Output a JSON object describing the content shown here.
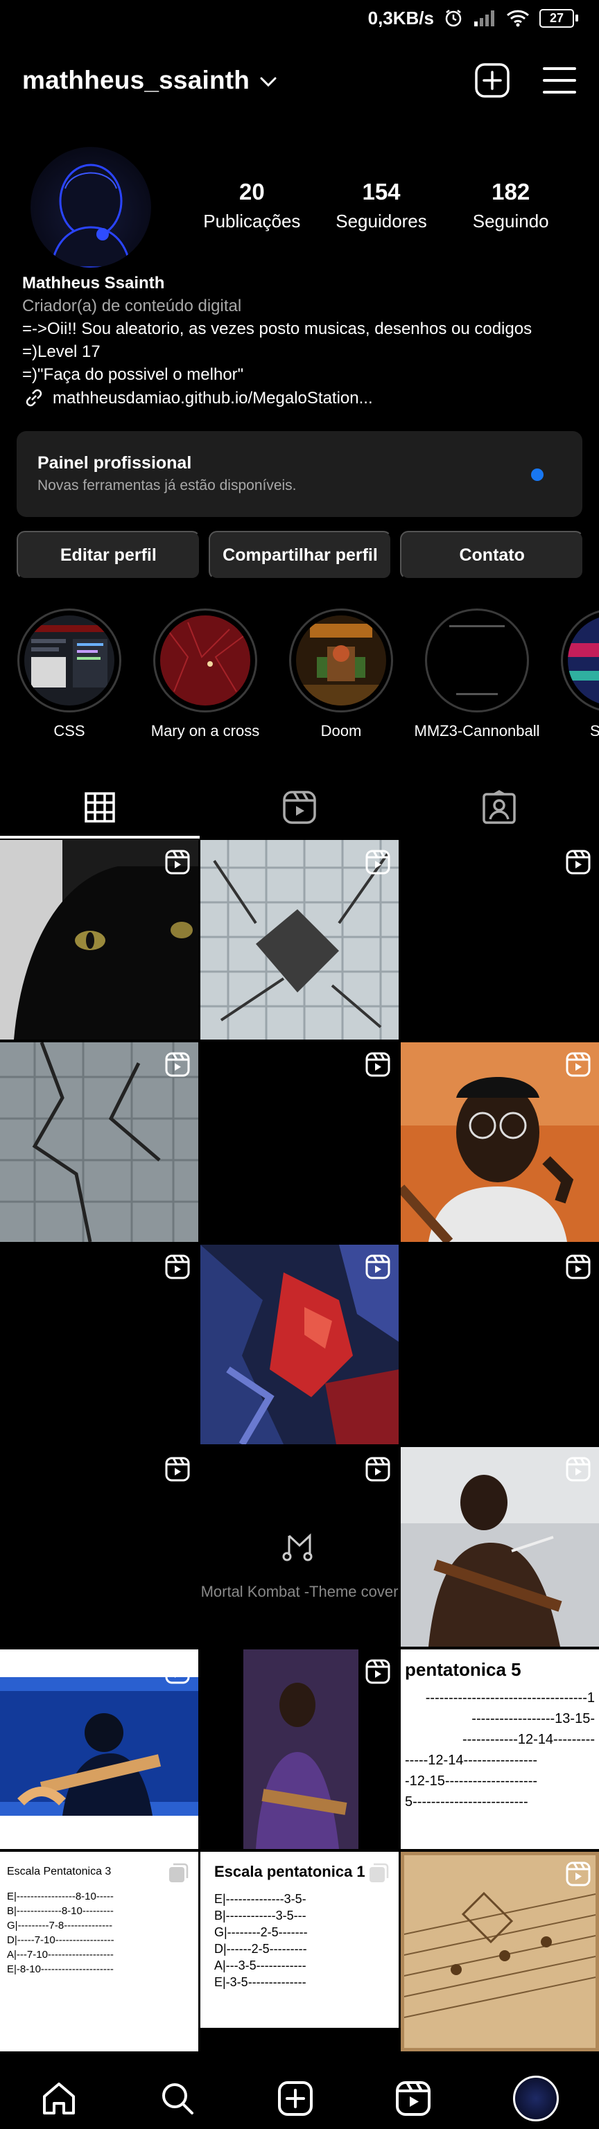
{
  "status": {
    "speed": "0,3KB/s",
    "battery": "27"
  },
  "header": {
    "username": "mathheus_ssainth"
  },
  "stats": [
    {
      "value": "20",
      "label": "Publicações"
    },
    {
      "value": "154",
      "label": "Seguidores"
    },
    {
      "value": "182",
      "label": "Seguindo"
    }
  ],
  "bio": {
    "name": "Mathheus Ssainth",
    "category": "Criador(a) de conteúdo digital",
    "lines": [
      "=->Oii!! Sou aleatorio, as vezes posto musicas, desenhos ou codigos",
      "=)Level 17",
      "=)\"Faça do possivel o melhor\""
    ],
    "link": "mathheusdamiao.github.io/MegaloStation..."
  },
  "panel": {
    "title": "Painel profissional",
    "subtitle": "Novas ferramentas já estão disponíveis."
  },
  "buttons": {
    "edit": "Editar perfil",
    "share": "Compartilhar perfil",
    "contact": "Contato"
  },
  "highlights": [
    {
      "label": "CSS"
    },
    {
      "label": "Mary on a cross"
    },
    {
      "label": "Doom"
    },
    {
      "label": "MMZ3-Cannonball"
    },
    {
      "label": "Smiles"
    }
  ],
  "grid": {
    "mk_caption": "Mortal Kombat -Theme cover",
    "penta5": {
      "title": "pentatonica 5",
      "tab": [
        "-----------------------------------1",
        "------------------13-15-",
        "------------12-14---------",
        "-----12-14----------------",
        "-12-15--------------------",
        "5-------------------------"
      ]
    },
    "penta3": {
      "title": "Escala Pentatonica 3",
      "tab": [
        "E|-----------------8-10-----",
        "B|-------------8-10---------",
        "G|---------7-8--------------",
        "D|-----7-10-----------------",
        "A|---7-10-------------------",
        "E|-8-10---------------------"
      ]
    },
    "penta1": {
      "title": "Escala pentatonica 1",
      "tab": [
        "E|--------------3-5-",
        "B|------------3-5---",
        "G|--------2-5-------",
        "D|------2-5---------",
        "A|---3-5------------",
        "E|-3-5--------------"
      ]
    }
  }
}
